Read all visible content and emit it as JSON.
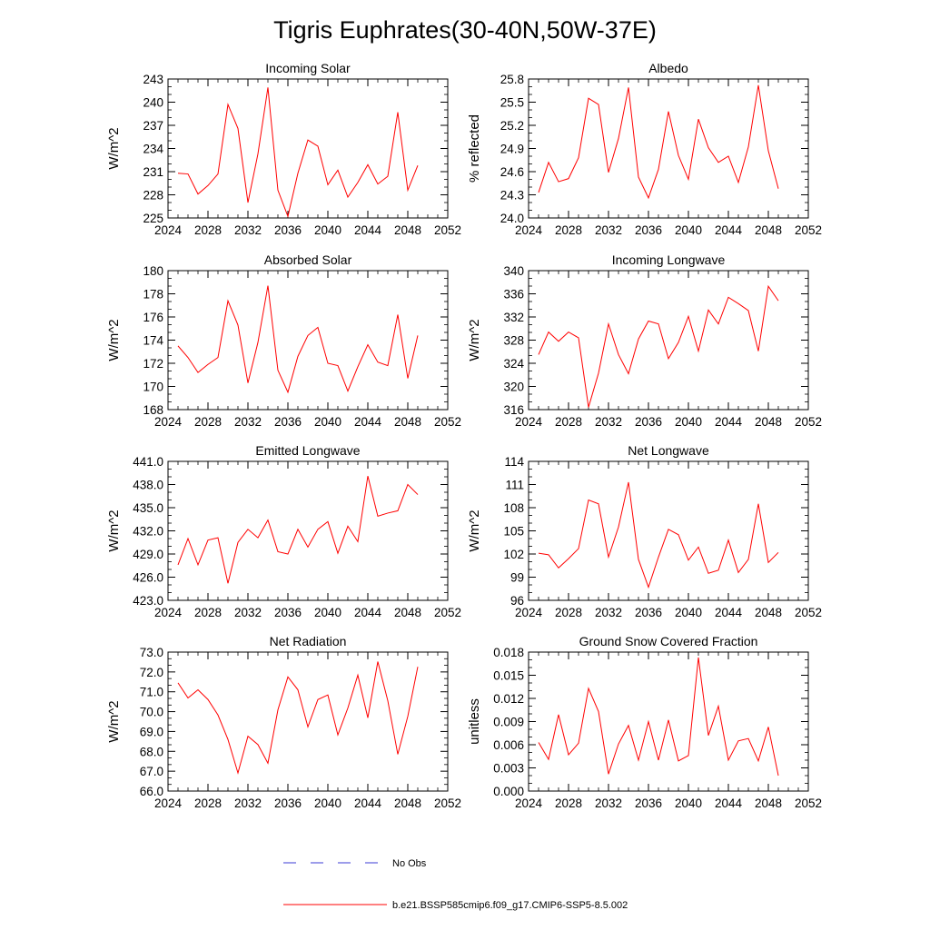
{
  "figure": {
    "title": "Tigris Euphrates(30-40N,50W-37E)"
  },
  "legend": {
    "items": [
      {
        "label": "No Obs",
        "style": "dashed",
        "color": "#3b3bd6"
      },
      {
        "label": "b.e21.BSSP585cmip6.f09_g17.CMIP6-SSP5-8.5.002",
        "style": "solid",
        "color": "#ff0000"
      }
    ]
  },
  "colors": {
    "series": "#ff0000",
    "axis": "#000000"
  },
  "chart_data": [
    {
      "type": "line",
      "title": "Incoming Solar",
      "ylabel": "W/m^2",
      "xlim": [
        2024,
        2052
      ],
      "ylim": [
        225,
        243
      ],
      "xticks": [
        2024,
        2028,
        2032,
        2036,
        2040,
        2044,
        2048,
        2052
      ],
      "xtick_labels": [
        "2024",
        "2028",
        "2032",
        "2036",
        "2040",
        "2044",
        "2048",
        "2052"
      ],
      "yticks": [
        225,
        228,
        231,
        234,
        237,
        240,
        243
      ],
      "ytick_labels": [
        "225",
        "228",
        "231",
        "234",
        "237",
        "240",
        "243"
      ],
      "x": [
        2025,
        2026,
        2027,
        2028,
        2029,
        2030,
        2031,
        2032,
        2033,
        2034,
        2035,
        2036,
        2037,
        2038,
        2039,
        2040,
        2041,
        2042,
        2043,
        2044,
        2045,
        2046,
        2047,
        2048,
        2049
      ],
      "series": [
        {
          "values": [
            230.8,
            230.7,
            228.1,
            229.2,
            230.7,
            239.7,
            236.6,
            227.0,
            233.3,
            241.9,
            228.6,
            225.2,
            230.8,
            235.1,
            234.3,
            229.3,
            231.2,
            227.7,
            229.6,
            231.9,
            229.4,
            230.4,
            238.7,
            228.6,
            231.8
          ]
        }
      ]
    },
    {
      "type": "line",
      "title": "Albedo",
      "ylabel": "% reflected",
      "xlim": [
        2024,
        2052
      ],
      "ylim": [
        24.0,
        25.8
      ],
      "xticks": [
        2024,
        2028,
        2032,
        2036,
        2040,
        2044,
        2048,
        2052
      ],
      "xtick_labels": [
        "2024",
        "2028",
        "2032",
        "2036",
        "2040",
        "2044",
        "2048",
        "2052"
      ],
      "yticks": [
        24.0,
        24.3,
        24.6,
        24.9,
        25.2,
        25.5,
        25.8
      ],
      "ytick_labels": [
        "24.0",
        "24.3",
        "24.6",
        "24.9",
        "25.2",
        "25.5",
        "25.8"
      ],
      "x": [
        2025,
        2026,
        2027,
        2028,
        2029,
        2030,
        2031,
        2032,
        2033,
        2034,
        2035,
        2036,
        2037,
        2038,
        2039,
        2040,
        2041,
        2042,
        2043,
        2044,
        2045,
        2046,
        2047,
        2048,
        2049
      ],
      "series": [
        {
          "values": [
            24.33,
            24.72,
            24.47,
            24.51,
            24.78,
            25.55,
            25.47,
            24.59,
            25.03,
            25.69,
            24.53,
            24.26,
            24.63,
            25.38,
            24.81,
            24.5,
            25.28,
            24.91,
            24.72,
            24.8,
            24.46,
            24.92,
            25.72,
            24.87,
            24.38
          ]
        }
      ]
    },
    {
      "type": "line",
      "title": "Absorbed Solar",
      "ylabel": "W/m^2",
      "xlim": [
        2024,
        2052
      ],
      "ylim": [
        168,
        180
      ],
      "xticks": [
        2024,
        2028,
        2032,
        2036,
        2040,
        2044,
        2048,
        2052
      ],
      "xtick_labels": [
        "2024",
        "2028",
        "2032",
        "2036",
        "2040",
        "2044",
        "2048",
        "2052"
      ],
      "yticks": [
        168,
        170,
        172,
        174,
        176,
        178,
        180
      ],
      "ytick_labels": [
        "168",
        "170",
        "172",
        "174",
        "176",
        "178",
        "180"
      ],
      "x": [
        2025,
        2026,
        2027,
        2028,
        2029,
        2030,
        2031,
        2032,
        2033,
        2034,
        2035,
        2036,
        2037,
        2038,
        2039,
        2040,
        2041,
        2042,
        2043,
        2044,
        2045,
        2046,
        2047,
        2048,
        2049
      ],
      "series": [
        {
          "values": [
            173.5,
            172.5,
            171.2,
            171.9,
            172.5,
            177.4,
            175.3,
            170.3,
            173.8,
            178.7,
            171.4,
            169.5,
            172.6,
            174.4,
            175.1,
            172.0,
            171.8,
            169.6,
            171.7,
            173.6,
            172.1,
            171.8,
            176.2,
            170.7,
            174.4
          ]
        }
      ]
    },
    {
      "type": "line",
      "title": "Incoming Longwave",
      "ylabel": "W/m^2",
      "xlim": [
        2024,
        2052
      ],
      "ylim": [
        316,
        340
      ],
      "xticks": [
        2024,
        2028,
        2032,
        2036,
        2040,
        2044,
        2048,
        2052
      ],
      "xtick_labels": [
        "2024",
        "2028",
        "2032",
        "2036",
        "2040",
        "2044",
        "2048",
        "2052"
      ],
      "yticks": [
        316,
        320,
        324,
        328,
        332,
        336,
        340
      ],
      "ytick_labels": [
        "316",
        "320",
        "324",
        "328",
        "332",
        "336",
        "340"
      ],
      "x": [
        2025,
        2026,
        2027,
        2028,
        2029,
        2030,
        2031,
        2032,
        2033,
        2034,
        2035,
        2036,
        2037,
        2038,
        2039,
        2040,
        2041,
        2042,
        2043,
        2044,
        2045,
        2046,
        2047,
        2048,
        2049
      ],
      "series": [
        {
          "values": [
            325.5,
            329.4,
            327.8,
            329.4,
            328.4,
            316.4,
            322.3,
            330.8,
            325.5,
            322.2,
            328.2,
            331.3,
            330.8,
            324.8,
            327.6,
            332.1,
            326.1,
            333.2,
            330.8,
            335.4,
            334.3,
            333.1,
            326.1,
            337.3,
            334.8
          ]
        }
      ]
    },
    {
      "type": "line",
      "title": "Emitted Longwave",
      "ylabel": "W/m^2",
      "xlim": [
        2024,
        2052
      ],
      "ylim": [
        423.0,
        441.0
      ],
      "xticks": [
        2024,
        2028,
        2032,
        2036,
        2040,
        2044,
        2048,
        2052
      ],
      "xtick_labels": [
        "2024",
        "2028",
        "2032",
        "2036",
        "2040",
        "2044",
        "2048",
        "2052"
      ],
      "yticks": [
        423.0,
        426.0,
        429.0,
        432.0,
        435.0,
        438.0,
        441.0
      ],
      "ytick_labels": [
        "423.0",
        "426.0",
        "429.0",
        "432.0",
        "435.0",
        "438.0",
        "441.0"
      ],
      "x": [
        2025,
        2026,
        2027,
        2028,
        2029,
        2030,
        2031,
        2032,
        2033,
        2034,
        2035,
        2036,
        2037,
        2038,
        2039,
        2040,
        2041,
        2042,
        2043,
        2044,
        2045,
        2046,
        2047,
        2048,
        2049
      ],
      "series": [
        {
          "values": [
            427.6,
            431.0,
            427.6,
            430.8,
            431.1,
            425.2,
            430.5,
            432.2,
            431.1,
            433.4,
            429.3,
            429.0,
            432.2,
            429.9,
            432.2,
            433.2,
            429.1,
            432.6,
            430.6,
            439.1,
            433.9,
            434.3,
            434.6,
            438.0,
            436.7
          ]
        }
      ]
    },
    {
      "type": "line",
      "title": "Net Longwave",
      "ylabel": "W/m^2",
      "xlim": [
        2024,
        2052
      ],
      "ylim": [
        96,
        114
      ],
      "xticks": [
        2024,
        2028,
        2032,
        2036,
        2040,
        2044,
        2048,
        2052
      ],
      "xtick_labels": [
        "2024",
        "2028",
        "2032",
        "2036",
        "2040",
        "2044",
        "2048",
        "2052"
      ],
      "yticks": [
        96,
        99,
        102,
        105,
        108,
        111,
        114
      ],
      "ytick_labels": [
        "96",
        "99",
        "102",
        "105",
        "108",
        "111",
        "114"
      ],
      "x": [
        2025,
        2026,
        2027,
        2028,
        2029,
        2030,
        2031,
        2032,
        2033,
        2034,
        2035,
        2036,
        2037,
        2038,
        2039,
        2040,
        2041,
        2042,
        2043,
        2044,
        2045,
        2046,
        2047,
        2048,
        2049
      ],
      "series": [
        {
          "values": [
            102.1,
            101.9,
            100.2,
            101.4,
            102.7,
            109.0,
            108.5,
            101.6,
            105.5,
            111.3,
            101.3,
            97.7,
            101.6,
            105.2,
            104.5,
            101.2,
            102.9,
            99.5,
            99.9,
            103.8,
            99.6,
            101.3,
            108.5,
            100.9,
            102.2
          ]
        }
      ]
    },
    {
      "type": "line",
      "title": "Net Radiation",
      "ylabel": "W/m^2",
      "xlim": [
        2024,
        2052
      ],
      "ylim": [
        66.0,
        73.0
      ],
      "xticks": [
        2024,
        2028,
        2032,
        2036,
        2040,
        2044,
        2048,
        2052
      ],
      "xtick_labels": [
        "2024",
        "2028",
        "2032",
        "2036",
        "2040",
        "2044",
        "2048",
        "2052"
      ],
      "yticks": [
        66.0,
        67.0,
        68.0,
        69.0,
        70.0,
        71.0,
        72.0,
        73.0
      ],
      "ytick_labels": [
        "66.0",
        "67.0",
        "68.0",
        "69.0",
        "70.0",
        "71.0",
        "72.0",
        "73.0"
      ],
      "x": [
        2025,
        2026,
        2027,
        2028,
        2029,
        2030,
        2031,
        2032,
        2033,
        2034,
        2035,
        2036,
        2037,
        2038,
        2039,
        2040,
        2041,
        2042,
        2043,
        2044,
        2045,
        2046,
        2047,
        2048,
        2049
      ],
      "series": [
        {
          "values": [
            71.45,
            70.69,
            71.1,
            70.61,
            69.83,
            68.6,
            66.91,
            68.76,
            68.34,
            67.4,
            70.09,
            71.75,
            71.1,
            69.23,
            70.61,
            70.84,
            68.83,
            70.18,
            71.84,
            69.69,
            72.52,
            70.55,
            67.85,
            69.76,
            72.26
          ]
        }
      ]
    },
    {
      "type": "line",
      "title": "Ground Snow Covered Fraction",
      "ylabel": "unitless",
      "xlim": [
        2024,
        2052
      ],
      "ylim": [
        0.0,
        0.018
      ],
      "xticks": [
        2024,
        2028,
        2032,
        2036,
        2040,
        2044,
        2048,
        2052
      ],
      "xtick_labels": [
        "2024",
        "2028",
        "2032",
        "2036",
        "2040",
        "2044",
        "2048",
        "2052"
      ],
      "yticks": [
        0.0,
        0.003,
        0.006,
        0.009,
        0.012,
        0.015,
        0.018
      ],
      "ytick_labels": [
        "0.000",
        "0.003",
        "0.006",
        "0.009",
        "0.012",
        "0.015",
        "0.018"
      ],
      "x": [
        2025,
        2026,
        2027,
        2028,
        2029,
        2030,
        2031,
        2032,
        2033,
        2034,
        2035,
        2036,
        2037,
        2038,
        2039,
        2040,
        2041,
        2042,
        2043,
        2044,
        2045,
        2046,
        2047,
        2048,
        2049
      ],
      "series": [
        {
          "values": [
            0.0063,
            0.0041,
            0.0099,
            0.0047,
            0.0062,
            0.0133,
            0.0103,
            0.0022,
            0.0061,
            0.0085,
            0.004,
            0.009,
            0.004,
            0.0092,
            0.0039,
            0.0046,
            0.0173,
            0.0072,
            0.011,
            0.004,
            0.0065,
            0.0068,
            0.0039,
            0.0083,
            0.002
          ]
        }
      ]
    }
  ]
}
